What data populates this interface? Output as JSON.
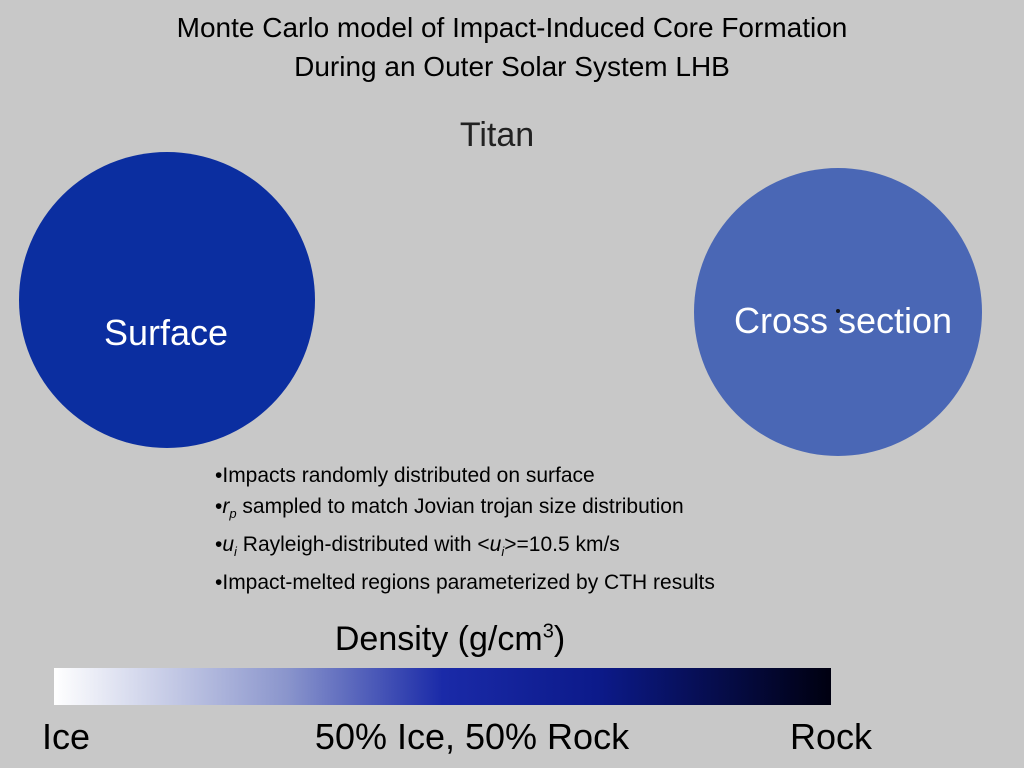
{
  "title": [
    "Monte Carlo model of Impact-Induced Core Formation",
    "During an Outer Solar System LHB"
  ],
  "subtitle": "Titan",
  "left_globe": {
    "label": "Surface"
  },
  "right_globe": {
    "label": "Cross section"
  },
  "bullets": [
    [
      "•",
      "Impacts randomly distributed on surface"
    ],
    [
      "•",
      {
        "text": "r",
        "style": "italic"
      },
      {
        "text": "p",
        "style": "sub"
      },
      " sampled to match Jovian trojan size distribution"
    ],
    [
      "•",
      {
        "text": "u",
        "style": "italic"
      },
      {
        "text": "i",
        "style": "sub"
      },
      " Rayleigh-distributed with <",
      {
        "text": "u",
        "style": "italic"
      },
      {
        "text": "i",
        "style": "sub"
      },
      ">=10.5 km/s"
    ],
    [
      "•",
      "Impact-melted regions parameterized by CTH results"
    ]
  ],
  "colorbar": {
    "title": [
      "Density (g/cm",
      {
        "text": "3",
        "style": "sup"
      },
      ")"
    ],
    "labels": [
      "Ice",
      "50% Ice, 50% Rock",
      "Rock"
    ]
  }
}
